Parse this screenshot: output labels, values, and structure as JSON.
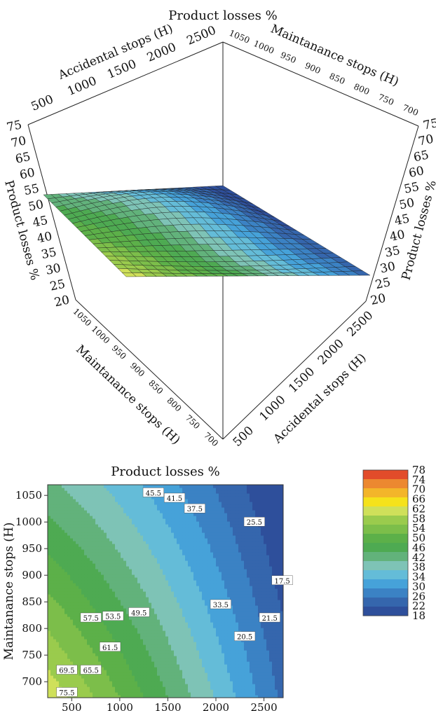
{
  "chart_data": [
    {
      "type": "surface3d",
      "title": "Product losses %",
      "axes": {
        "accidental": {
          "label": "Accidental stops (H)",
          "ticks": [
            500,
            1000,
            1500,
            2000,
            2500
          ],
          "range": [
            250,
            2700
          ]
        },
        "maintenance": {
          "label": "Maintanance stops (H)",
          "ticks": [
            1050,
            1000,
            950,
            900,
            850,
            800,
            750,
            700
          ],
          "range": [
            670,
            1070
          ]
        },
        "losses": {
          "label": "Product losses %",
          "ticks": [
            75,
            70,
            65,
            60,
            55,
            50,
            45,
            40,
            35,
            30,
            25,
            20
          ],
          "range": [
            20,
            78
          ]
        }
      },
      "grid": true
    },
    {
      "type": "contour",
      "title": "Product losses %",
      "xlabel": "Accidental stops (H)",
      "ylabel": "Maintanance stops (H)",
      "xticks": [
        500,
        1000,
        1500,
        2000,
        2500
      ],
      "yticks": [
        700,
        750,
        800,
        850,
        900,
        950,
        1000,
        1050
      ],
      "xlim": [
        250,
        2700
      ],
      "ylim": [
        670,
        1070
      ],
      "contour_labels": [
        "45.5",
        "41.5",
        "37.5",
        "25.5",
        "17.5",
        "21.5",
        "20.5",
        "33.5",
        "57.5",
        "53.5",
        "49.5",
        "61.5",
        "69.5",
        "65.5",
        "75.5"
      ],
      "levels": [
        18,
        22,
        26,
        30,
        34,
        38,
        42,
        46,
        50,
        54,
        58,
        62,
        66,
        70,
        74,
        78
      ],
      "colorbar": {
        "ticks": [
          "78",
          "74",
          "70",
          "66",
          "62",
          "58",
          "54",
          "50",
          "46",
          "42",
          "38",
          "34",
          "30",
          "26",
          "22",
          "18"
        ]
      },
      "colors": [
        "#2e4f9b",
        "#3566ad",
        "#3b82c4",
        "#46a2d9",
        "#64bcd8",
        "#7ec3b6",
        "#62b27b",
        "#4eaa52",
        "#5cb049",
        "#7cbe4a",
        "#9acb4d",
        "#cfe05a",
        "#f5e21b",
        "#f3b52a",
        "#ec8830",
        "#e24c2a"
      ]
    }
  ]
}
